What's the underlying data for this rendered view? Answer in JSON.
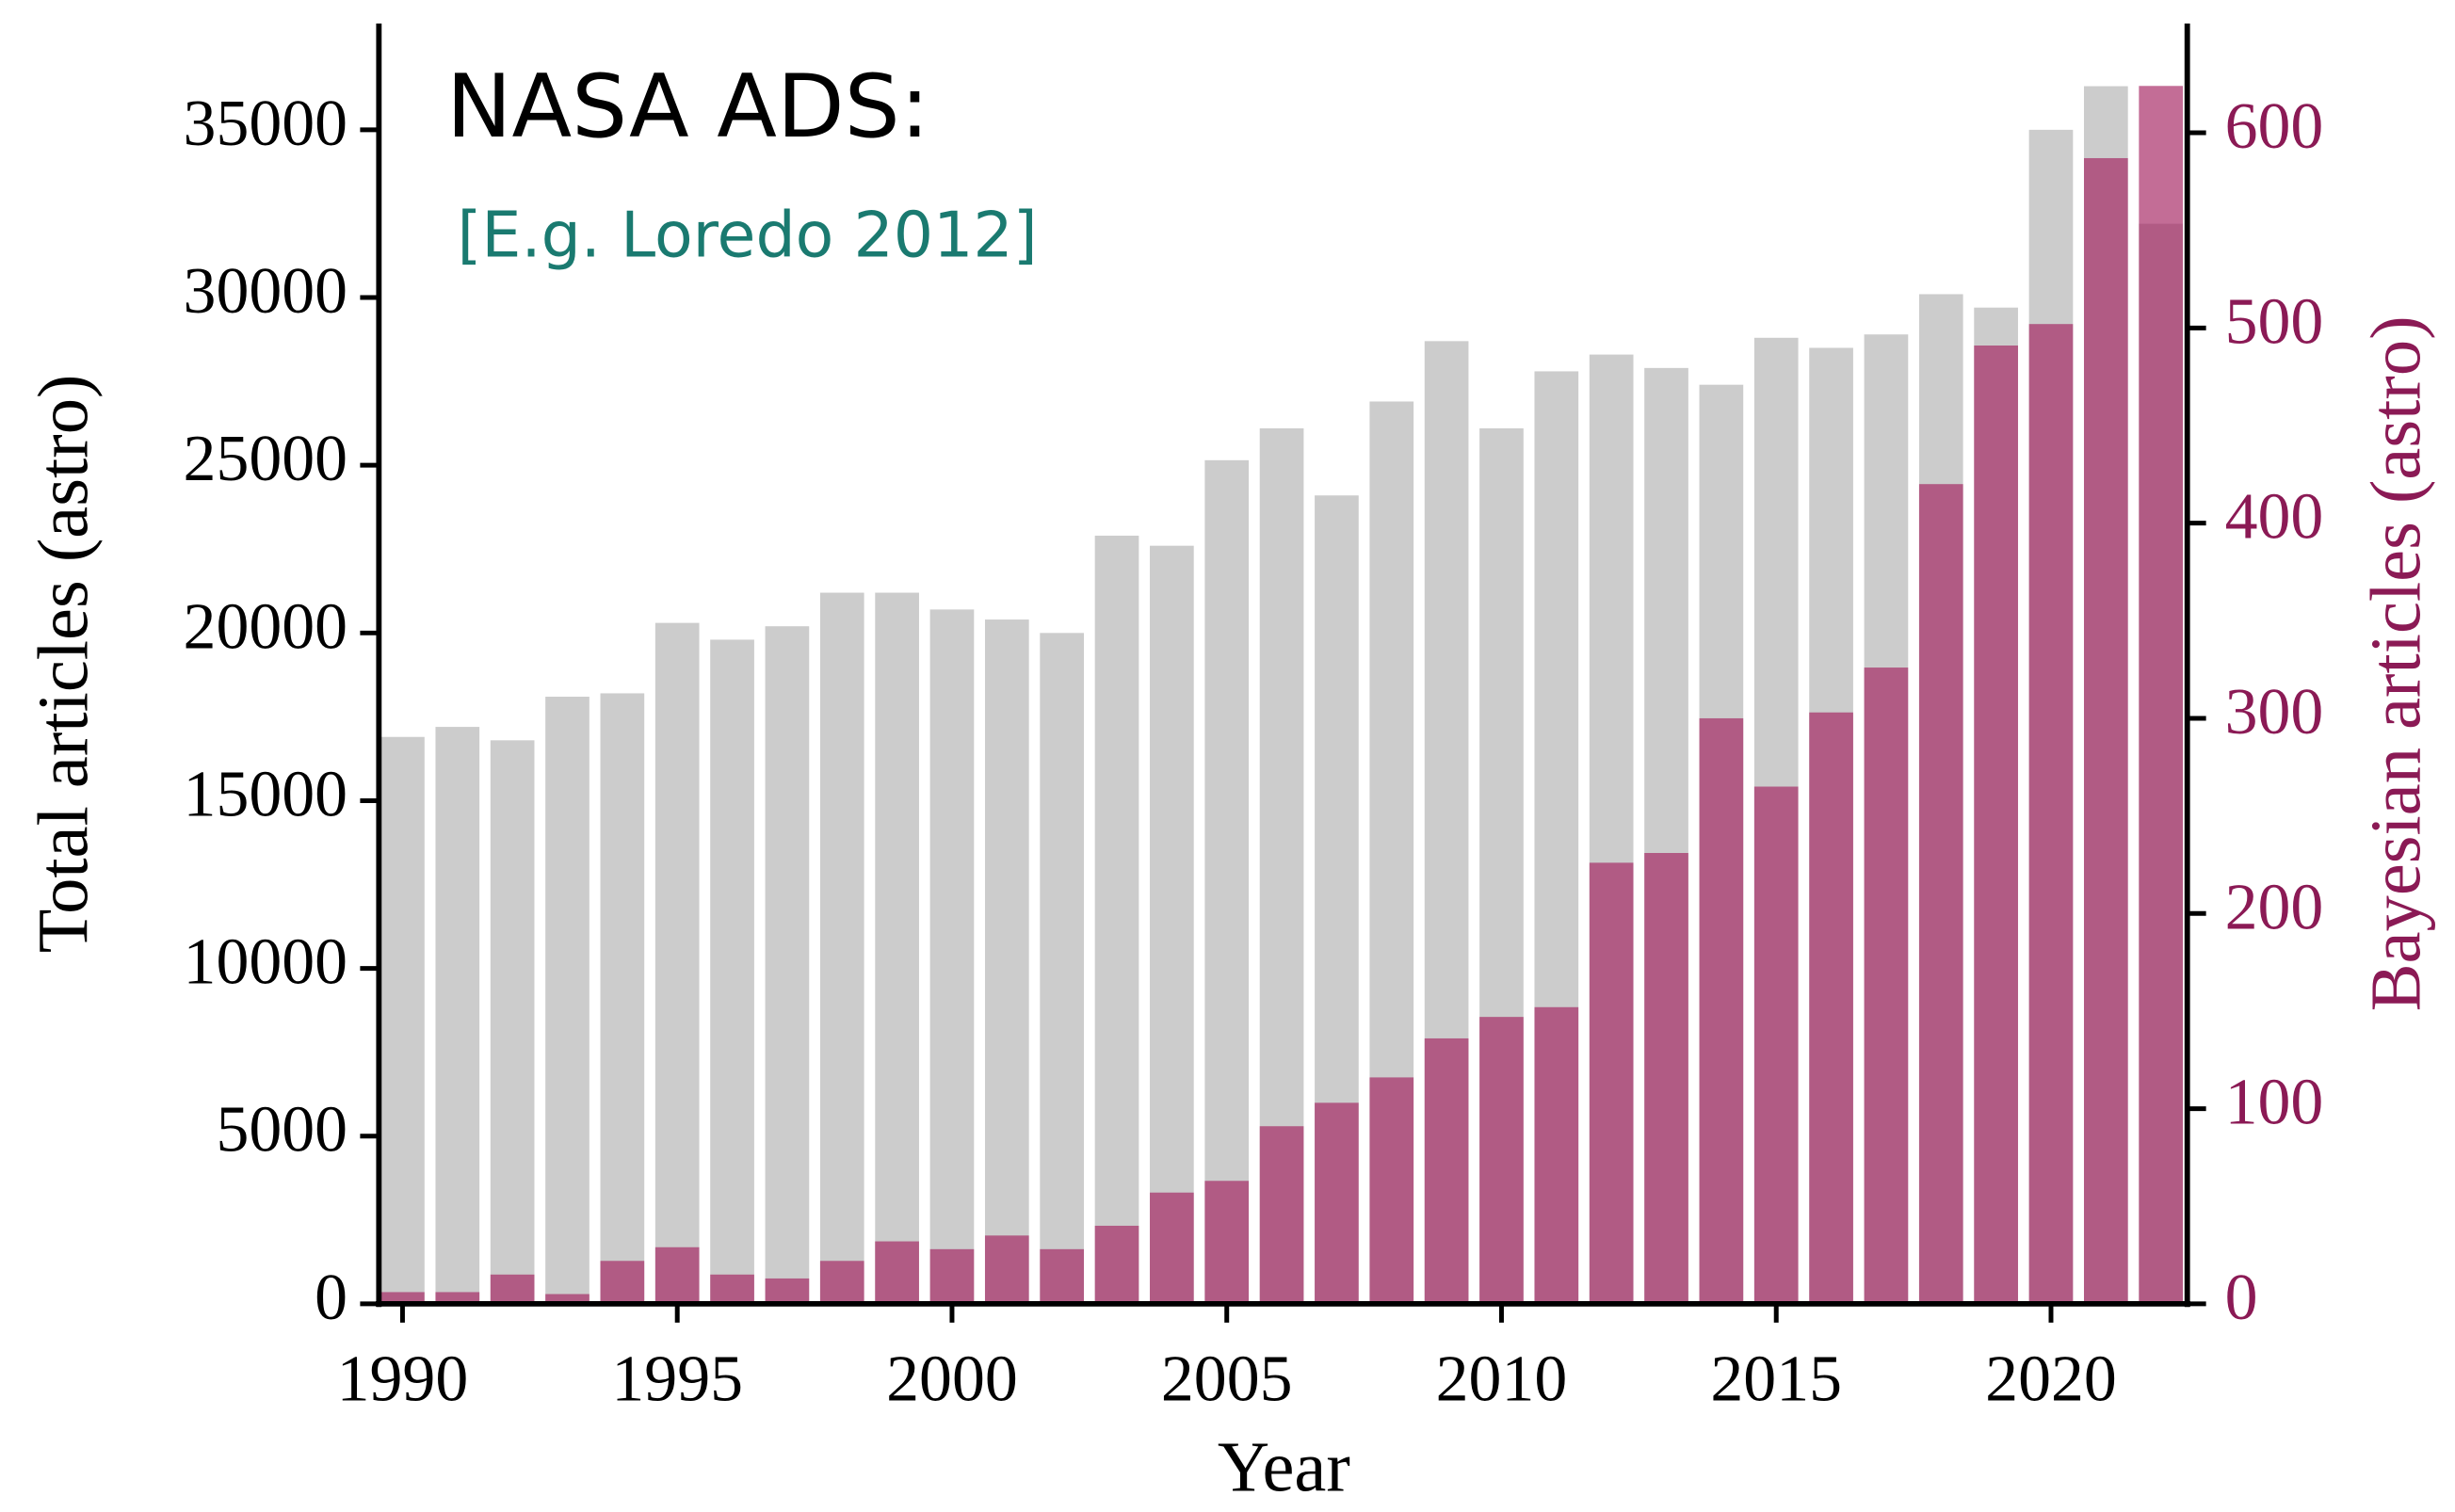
{
  "chart_data": {
    "type": "bar",
    "annotations": [
      "NASA ADS:",
      "[E.g. Loredo 2012]"
    ],
    "xlabel": "Year",
    "ylabel": "Total articles (astro)",
    "y2label": "Bayesian articles (astro)",
    "x": [
      1990,
      1991,
      1992,
      1993,
      1994,
      1995,
      1996,
      1997,
      1998,
      1999,
      2000,
      2001,
      2002,
      2003,
      2004,
      2005,
      2006,
      2007,
      2008,
      2009,
      2010,
      2011,
      2012,
      2013,
      2014,
      2015,
      2016,
      2017,
      2018,
      2019,
      2020,
      2021,
      2022
    ],
    "series": [
      {
        "name": "Total articles (astro)",
        "color": "#cccccc",
        "axis": "y",
        "values": [
          16900,
          17200,
          16800,
          18100,
          18200,
          20300,
          19800,
          20200,
          21200,
          21200,
          20700,
          20400,
          20000,
          22900,
          22600,
          25150,
          26100,
          24100,
          26900,
          28700,
          26100,
          27800,
          28300,
          27900,
          27400,
          28800,
          28500,
          28900,
          30100,
          29700,
          35000,
          36300,
          32200
        ]
      },
      {
        "name": "Bayesian articles (astro)",
        "color": "#a31f5e",
        "axis": "y2",
        "values": [
          6,
          6,
          15,
          5,
          22,
          29,
          15,
          13,
          22,
          32,
          28,
          35,
          28,
          40,
          57,
          63,
          91,
          103,
          116,
          136,
          147,
          152,
          226,
          231,
          300,
          265,
          303,
          326,
          420,
          491,
          502,
          587,
          624
        ]
      }
    ],
    "xlim": [
      1989.57,
      2022.48
    ],
    "xticks": [
      1990,
      1995,
      2000,
      2005,
      2010,
      2015,
      2020
    ],
    "ylim": [
      0,
      38170
    ],
    "yticks": [
      0,
      5000,
      10000,
      15000,
      20000,
      25000,
      30000,
      35000
    ],
    "y2lim": [
      0,
      656
    ],
    "y2ticks": [
      0,
      100,
      200,
      300,
      400,
      500,
      600
    ],
    "y2color": "#8b1a55",
    "annotation_color": "#1a7a70"
  }
}
